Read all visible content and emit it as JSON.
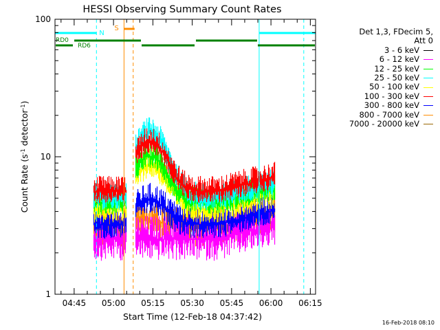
{
  "chart_data": {
    "type": "line",
    "title": "HESSI Observing Summary Count Rates",
    "xlabel": "Start Time (12-Feb-18 04:37:42)",
    "ylabel": "Count Rate (s",
    "ylabel_sup1": "-1",
    "ylabel_mid": " detector",
    "ylabel_sup2": "-1",
    "ylabel_end": ")",
    "y_scale": "log",
    "ylim": [
      1,
      100
    ],
    "yticks": [
      {
        "value": 1,
        "label": "1"
      },
      {
        "value": 10,
        "label": "10"
      },
      {
        "value": 100,
        "label": "100"
      }
    ],
    "xlim": [
      "04:37:42",
      "06:17:00"
    ],
    "xticks": [
      "04:45",
      "05:00",
      "05:15",
      "05:30",
      "05:45",
      "06:00",
      "06:15"
    ],
    "grid": false,
    "legend_position": "right",
    "legend_header": [
      "Det 1,3, FDecim 5,",
      "Att 0"
    ],
    "series": [
      {
        "name": "3 - 6 keV",
        "color": "#000000"
      },
      {
        "name": "6 - 12 keV",
        "color": "#ff00ff"
      },
      {
        "name": "12 - 25 keV",
        "color": "#00ff00"
      },
      {
        "name": "25 - 50 keV",
        "color": "#00ffff"
      },
      {
        "name": "50 - 100 keV",
        "color": "#ffff00"
      },
      {
        "name": "100 - 300 keV",
        "color": "#ff0000"
      },
      {
        "name": "300 - 800 keV",
        "color": "#0000ff"
      },
      {
        "name": "800 - 7000 keV",
        "color": "#ff8c00"
      },
      {
        "name": "7000 - 20000 keV",
        "color": "#996600"
      }
    ],
    "data_segments": [
      {
        "start": "04:52:30",
        "end": "05:05:00"
      },
      {
        "start": "05:08:30",
        "end": "06:01:30"
      }
    ],
    "annotations": {
      "S": {
        "label": "S",
        "color": "#ff8c00",
        "start": "05:04:00",
        "end": "05:07:30"
      },
      "N": {
        "label": "N",
        "color": "#00ffff",
        "times": [
          "04:37:42",
          "04:53:30",
          "05:55:30",
          "06:17:00"
        ]
      },
      "RD0": {
        "label": "RD0",
        "color": "#008000"
      },
      "RD6": {
        "label": "RD6",
        "color": "#008000"
      },
      "vlines_solid_cyan": [
        "04:37:42",
        "05:55:30"
      ],
      "vlines_dashed_cyan": [
        "04:53:30",
        "06:12:30"
      ],
      "vlines_solid_orange": [
        "05:04:00"
      ],
      "vlines_dashed_orange": [
        "05:07:30"
      ]
    }
  },
  "datestamp": "16-Feb-2018 08:10"
}
